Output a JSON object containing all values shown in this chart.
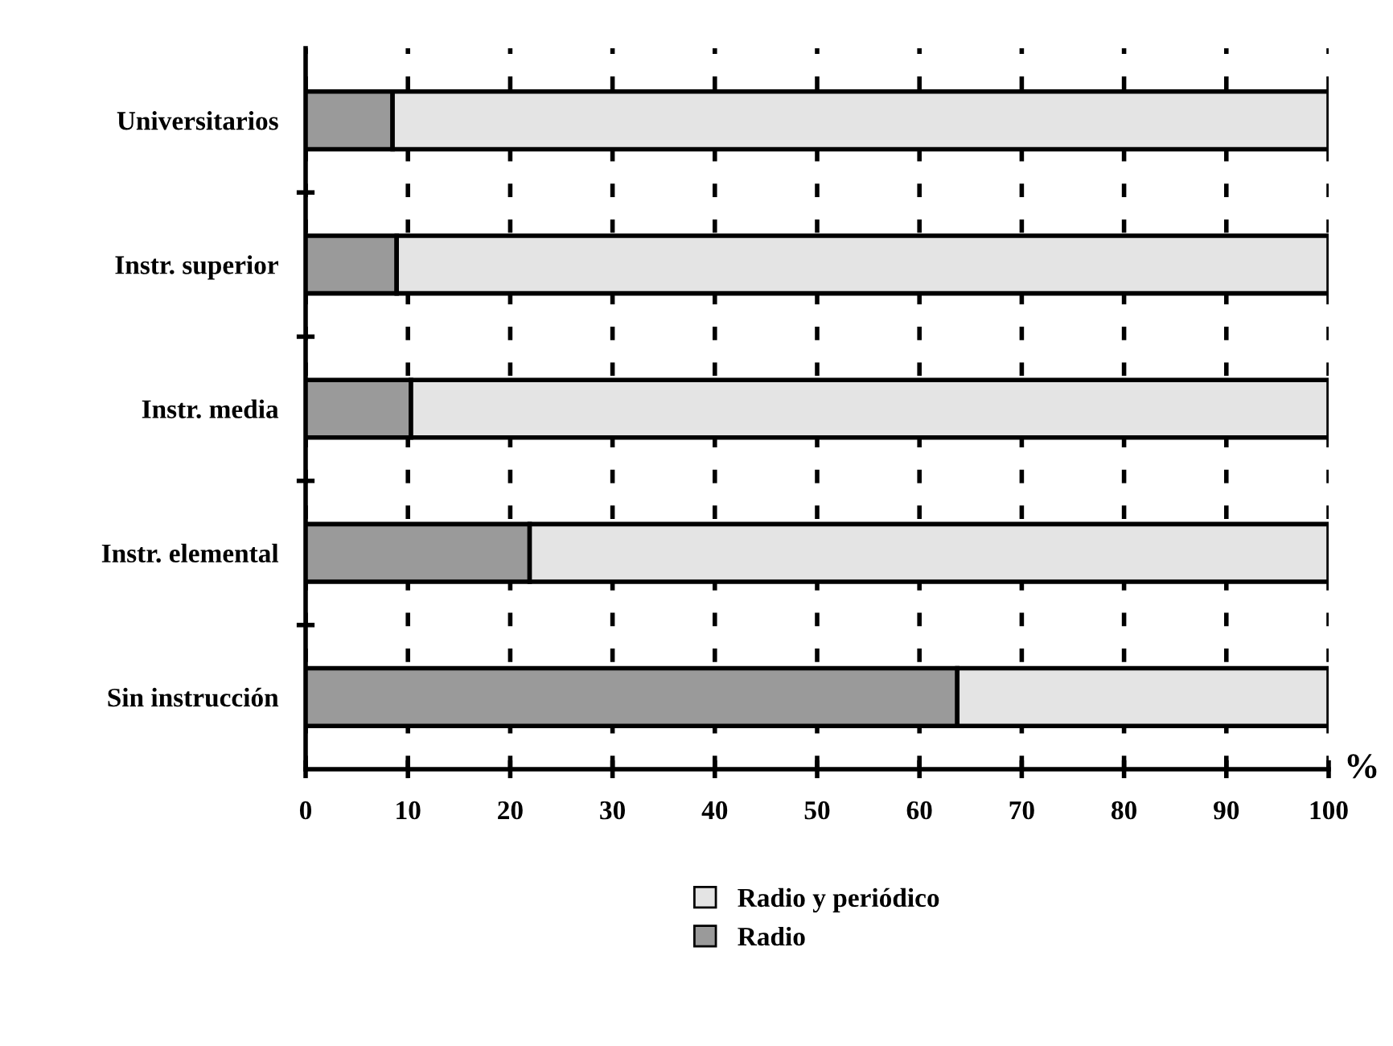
{
  "chart_data": {
    "type": "bar",
    "orientation": "horizontal",
    "stacked": true,
    "categories": [
      "Universitarios",
      "Instr. superior",
      "Instr. media",
      "Instr. elemental",
      "Sin instrucción"
    ],
    "series": [
      {
        "name": "Radio",
        "color": "#9a9a9a",
        "values": [
          8.5,
          8.9,
          10.3,
          21.9,
          63.7
        ]
      },
      {
        "name": "Radio y periódico",
        "color": "#e4e4e4",
        "values": [
          91.5,
          91.1,
          89.7,
          78.1,
          36.3
        ]
      }
    ],
    "xlabel": "%",
    "xlim": [
      0,
      100
    ],
    "xticks": [
      0,
      10,
      20,
      30,
      40,
      50,
      60,
      70,
      80,
      90,
      100
    ],
    "grid": "x",
    "legend": "bottom"
  }
}
